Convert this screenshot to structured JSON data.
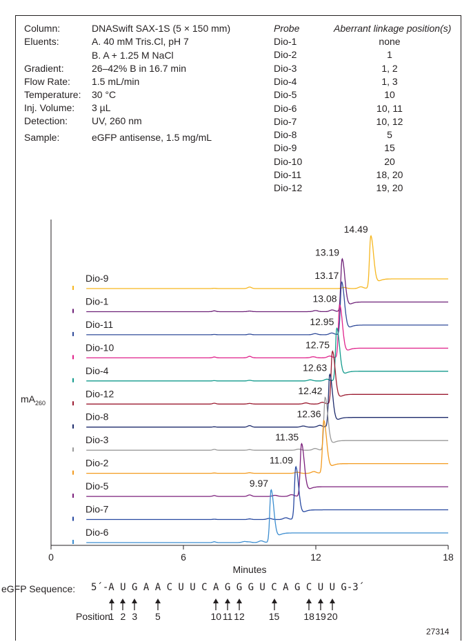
{
  "conditions": [
    {
      "label": "Column:",
      "value": "DNASwift SAX-1S (5 × 150 mm)"
    },
    {
      "label": "Eluents:",
      "value": "A. 40 mM Tris.Cl, pH 7"
    },
    {
      "label": "",
      "value": "B. A + 1.25 M NaCl"
    },
    {
      "label": "Gradient:",
      "value": "26–42% B in 16.7 min"
    },
    {
      "label": "Flow Rate:",
      "value": "1.5 mL/min"
    },
    {
      "label": "Temperature:",
      "value": "30 °C"
    },
    {
      "label": "Inj. Volume:",
      "value": "3 µL"
    },
    {
      "label": "Detection:",
      "value": "UV, 260 nm"
    },
    {
      "label": "Sample:",
      "value": "eGFP antisense, 1.5 mg/mL"
    }
  ],
  "probe_table": {
    "header_probe": "Probe",
    "header_position": "Aberrant linkage position(s)",
    "rows": [
      {
        "probe": "Dio-1",
        "positions": "none"
      },
      {
        "probe": "Dio-2",
        "positions": "1"
      },
      {
        "probe": "Dio-3",
        "positions": "1, 2"
      },
      {
        "probe": "Dio-4",
        "positions": "1, 3"
      },
      {
        "probe": "Dio-5",
        "positions": "10"
      },
      {
        "probe": "Dio-6",
        "positions": "10, 11"
      },
      {
        "probe": "Dio-7",
        "positions": "10, 12"
      },
      {
        "probe": "Dio-8",
        "positions": "5"
      },
      {
        "probe": "Dio-9",
        "positions": "15"
      },
      {
        "probe": "Dio-10",
        "positions": "20"
      },
      {
        "probe": "Dio-11",
        "positions": "18, 20"
      },
      {
        "probe": "Dio-12",
        "positions": "19, 20"
      }
    ]
  },
  "chart_data": {
    "type": "line",
    "xlabel": "Minutes",
    "ylabel": "mA",
    "ylabel_sub": "260",
    "xlim": [
      0,
      18
    ],
    "xticks": [
      0,
      6,
      12,
      18
    ],
    "x_tick_labels": [
      "0",
      "6",
      "12",
      "18"
    ],
    "stacked_offset": true,
    "series": [
      {
        "name": "Dio-9",
        "color": "#f6b61e",
        "peak": 14.49,
        "label": "14.49"
      },
      {
        "name": "Dio-1",
        "color": "#6d2077",
        "peak": 13.19,
        "label": "13.19"
      },
      {
        "name": "Dio-11",
        "color": "#2f4a99",
        "peak": 13.17,
        "label": "13.17"
      },
      {
        "name": "Dio-10",
        "color": "#e0218a",
        "peak": 13.08,
        "label": "13.08"
      },
      {
        "name": "Dio-4",
        "color": "#119a8c",
        "peak": 12.95,
        "label": "12.95"
      },
      {
        "name": "Dio-12",
        "color": "#9b1b30",
        "peak": 12.75,
        "label": "12.75"
      },
      {
        "name": "Dio-8",
        "color": "#1c2a6b",
        "peak": 12.63,
        "label": "12.63"
      },
      {
        "name": "Dio-3",
        "color": "#999999",
        "peak": 12.42,
        "label": "12.42"
      },
      {
        "name": "Dio-2",
        "color": "#f39a1e",
        "peak": 12.36,
        "label": "12.36"
      },
      {
        "name": "Dio-5",
        "color": "#7b1f7b",
        "peak": 11.35,
        "label": "11.35"
      },
      {
        "name": "Dio-7",
        "color": "#2547a0",
        "peak": 11.09,
        "label": "11.09"
      },
      {
        "name": "Dio-6",
        "color": "#3a8ccf",
        "peak": 9.97,
        "label": "9.97"
      }
    ]
  },
  "sequence": {
    "label": "eGFP Sequence:",
    "text": "5´-A U G A A C U U C A G G G U C A G C U U G-3´",
    "position_label": "Position:",
    "positions": [
      "1",
      "2",
      "3",
      "5",
      "10",
      "11",
      "12",
      "15",
      "18",
      "19",
      "20"
    ]
  },
  "figure_id": "27314"
}
